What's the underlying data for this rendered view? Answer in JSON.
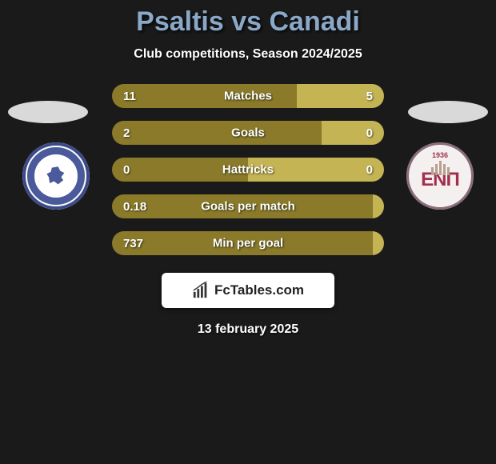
{
  "title_color": "#8aa8c8",
  "title": "Psaltis vs Canadi",
  "subtitle": "Club competitions, Season 2024/2025",
  "bar_colors": {
    "left": "#8a7a2a",
    "right": "#c4b454"
  },
  "rows": [
    {
      "label": "Matches",
      "left_val": "11",
      "right_val": "5",
      "left_pct": 68
    },
    {
      "label": "Goals",
      "left_val": "2",
      "right_val": "0",
      "left_pct": 77
    },
    {
      "label": "Hattricks",
      "left_val": "0",
      "right_val": "0",
      "left_pct": 50
    },
    {
      "label": "Goals per match",
      "left_val": "0.18",
      "right_val": "",
      "left_pct": 100
    },
    {
      "label": "Min per goal",
      "left_val": "737",
      "right_val": "",
      "left_pct": 100
    }
  ],
  "footer": {
    "site": "FcTables.com"
  },
  "date": "13 february 2025",
  "logos": {
    "right_year": "1936",
    "right_text": "ENΠ"
  }
}
